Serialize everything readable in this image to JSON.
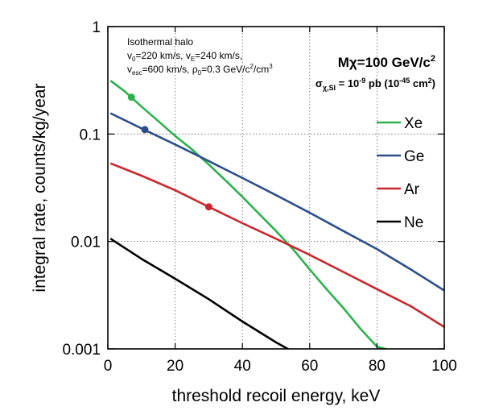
{
  "chart_data": {
    "type": "line",
    "x_scale": "linear",
    "y_scale": "log",
    "xlim": [
      0,
      100
    ],
    "ylim": [
      0.001,
      1
    ],
    "xlabel": "threshold recoil energy, keV",
    "ylabel": "integral rate, counts/kg/year",
    "x_ticks": [
      0,
      20,
      40,
      60,
      80,
      100
    ],
    "x_tick_labels": [
      "0",
      "20",
      "40",
      "60",
      "80",
      "100"
    ],
    "y_ticks": [
      0.001,
      0.01,
      0.1,
      1
    ],
    "y_tick_labels": [
      "0.001",
      "0.01",
      "0.1",
      "1"
    ],
    "grid": "dotted major lines",
    "legend_position": "right",
    "annotations": {
      "halo_title": "Isothermal halo",
      "halo_line2": "v0=220 km/s, vE=240 km/s,",
      "halo_line3": "vesc=600 km/s, ρ0=0.3 GeV/c2/cm3",
      "mass_label": "Mχ=100 GeV/c2",
      "cross_section_label": "σχ,SI = 10-9 pb (10-45 cm2)"
    },
    "series": [
      {
        "name": "Xe",
        "color": "#2bb24c",
        "x": [
          1,
          5,
          10,
          15,
          20,
          25,
          30,
          35,
          40,
          45,
          50,
          55,
          60,
          65,
          70,
          75,
          80,
          85
        ],
        "y": [
          0.31,
          0.25,
          0.18,
          0.132,
          0.096,
          0.072,
          0.052,
          0.037,
          0.026,
          0.018,
          0.0125,
          0.0085,
          0.0055,
          0.0036,
          0.0024,
          0.00155,
          0.00105,
          0.00095
        ],
        "threshold_marker": {
          "x": 7,
          "y": 0.22
        }
      },
      {
        "name": "Ge",
        "color": "#2c4f8a",
        "x": [
          1,
          10,
          20,
          30,
          40,
          50,
          60,
          70,
          80,
          90,
          100
        ],
        "y": [
          0.155,
          0.113,
          0.08,
          0.056,
          0.039,
          0.027,
          0.0185,
          0.0125,
          0.0085,
          0.0055,
          0.0035
        ],
        "threshold_marker": {
          "x": 11,
          "y": 0.11
        }
      },
      {
        "name": "Ar",
        "color": "#c8282d",
        "x": [
          1,
          10,
          20,
          30,
          40,
          50,
          60,
          70,
          80,
          90,
          100
        ],
        "y": [
          0.053,
          0.041,
          0.03,
          0.021,
          0.0148,
          0.0106,
          0.0075,
          0.0052,
          0.0036,
          0.0025,
          0.0016
        ],
        "threshold_marker": {
          "x": 30,
          "y": 0.021
        }
      },
      {
        "name": "Ne",
        "color": "#000000",
        "x": [
          1,
          10,
          20,
          30,
          40,
          50,
          54
        ],
        "y": [
          0.0105,
          0.0069,
          0.0045,
          0.0029,
          0.0018,
          0.00115,
          0.00098
        ]
      }
    ]
  }
}
